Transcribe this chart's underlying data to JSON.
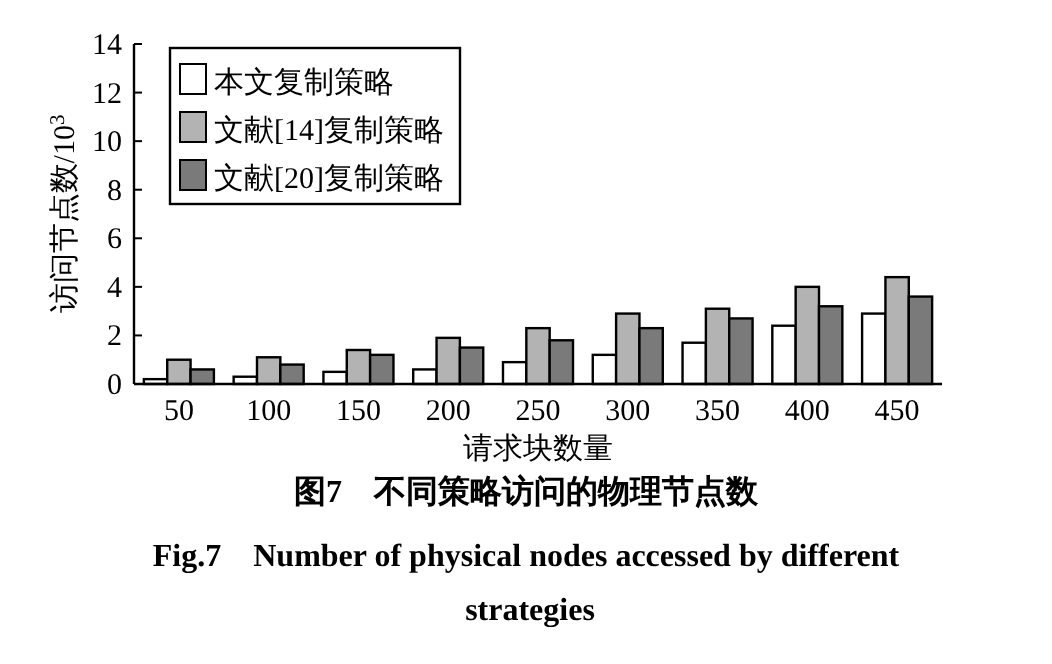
{
  "chart_data": {
    "type": "bar",
    "title": "图7　不同策略访问的物理节点数",
    "subtitle": "Fig.7　Number of physical nodes accessed by different strategies",
    "xlabel": "请求块数量",
    "ylabel": "访问节点数/10$^{3}$",
    "categories": [
      "50",
      "100",
      "150",
      "200",
      "250",
      "300",
      "350",
      "400",
      "450"
    ],
    "series": [
      {
        "name": "本文复制策略",
        "color": "#ffffff",
        "values": [
          0.2,
          0.3,
          0.5,
          0.6,
          0.9,
          1.2,
          1.7,
          2.4,
          2.9
        ]
      },
      {
        "name": "文献[14]复制策略",
        "color": "#b3b3b3",
        "values": [
          1.0,
          1.1,
          1.4,
          1.9,
          2.3,
          2.9,
          3.1,
          4.0,
          4.4
        ]
      },
      {
        "name": "文献[20]复制策略",
        "color": "#7a7a7a",
        "values": [
          0.6,
          0.8,
          1.2,
          1.5,
          1.8,
          2.3,
          2.7,
          3.2,
          3.6
        ]
      }
    ],
    "ylim": [
      0,
      14
    ],
    "yticks": [
      0,
      2,
      4,
      6,
      8,
      10,
      12,
      14
    ],
    "grid": false,
    "legend": "top left"
  }
}
